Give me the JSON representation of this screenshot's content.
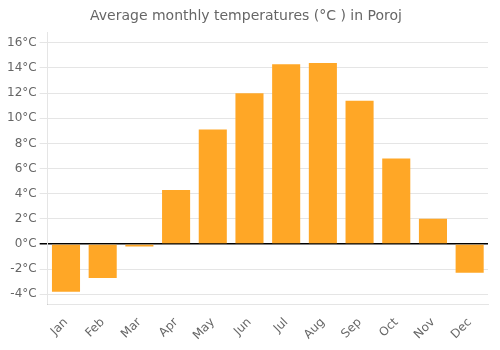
{
  "chart_data": {
    "type": "bar",
    "title": "Average monthly temperatures (°C ) in Poroj",
    "categories": [
      "Jan",
      "Feb",
      "Mar",
      "Apr",
      "May",
      "Jun",
      "Jul",
      "Aug",
      "Sep",
      "Oct",
      "Nov",
      "Dec"
    ],
    "values": [
      -3.8,
      -2.7,
      -0.2,
      4.3,
      9.1,
      12.0,
      14.3,
      14.4,
      11.4,
      6.8,
      2.0,
      -2.3
    ],
    "color": "#FFA726",
    "ylim": [
      -4.8,
      16.8
    ],
    "yticks": [
      {
        "value": -4,
        "label": "-4°C"
      },
      {
        "value": -2,
        "label": "-2°C"
      },
      {
        "value": 0,
        "label": "0°C"
      },
      {
        "value": 2,
        "label": "2°C"
      },
      {
        "value": 4,
        "label": "4°C"
      },
      {
        "value": 6,
        "label": "6°C"
      },
      {
        "value": 8,
        "label": "8°C"
      },
      {
        "value": 10,
        "label": "10°C"
      },
      {
        "value": 12,
        "label": "12°C"
      },
      {
        "value": 14,
        "label": "14°C"
      },
      {
        "value": 16,
        "label": "16°C"
      }
    ],
    "grid": true
  }
}
